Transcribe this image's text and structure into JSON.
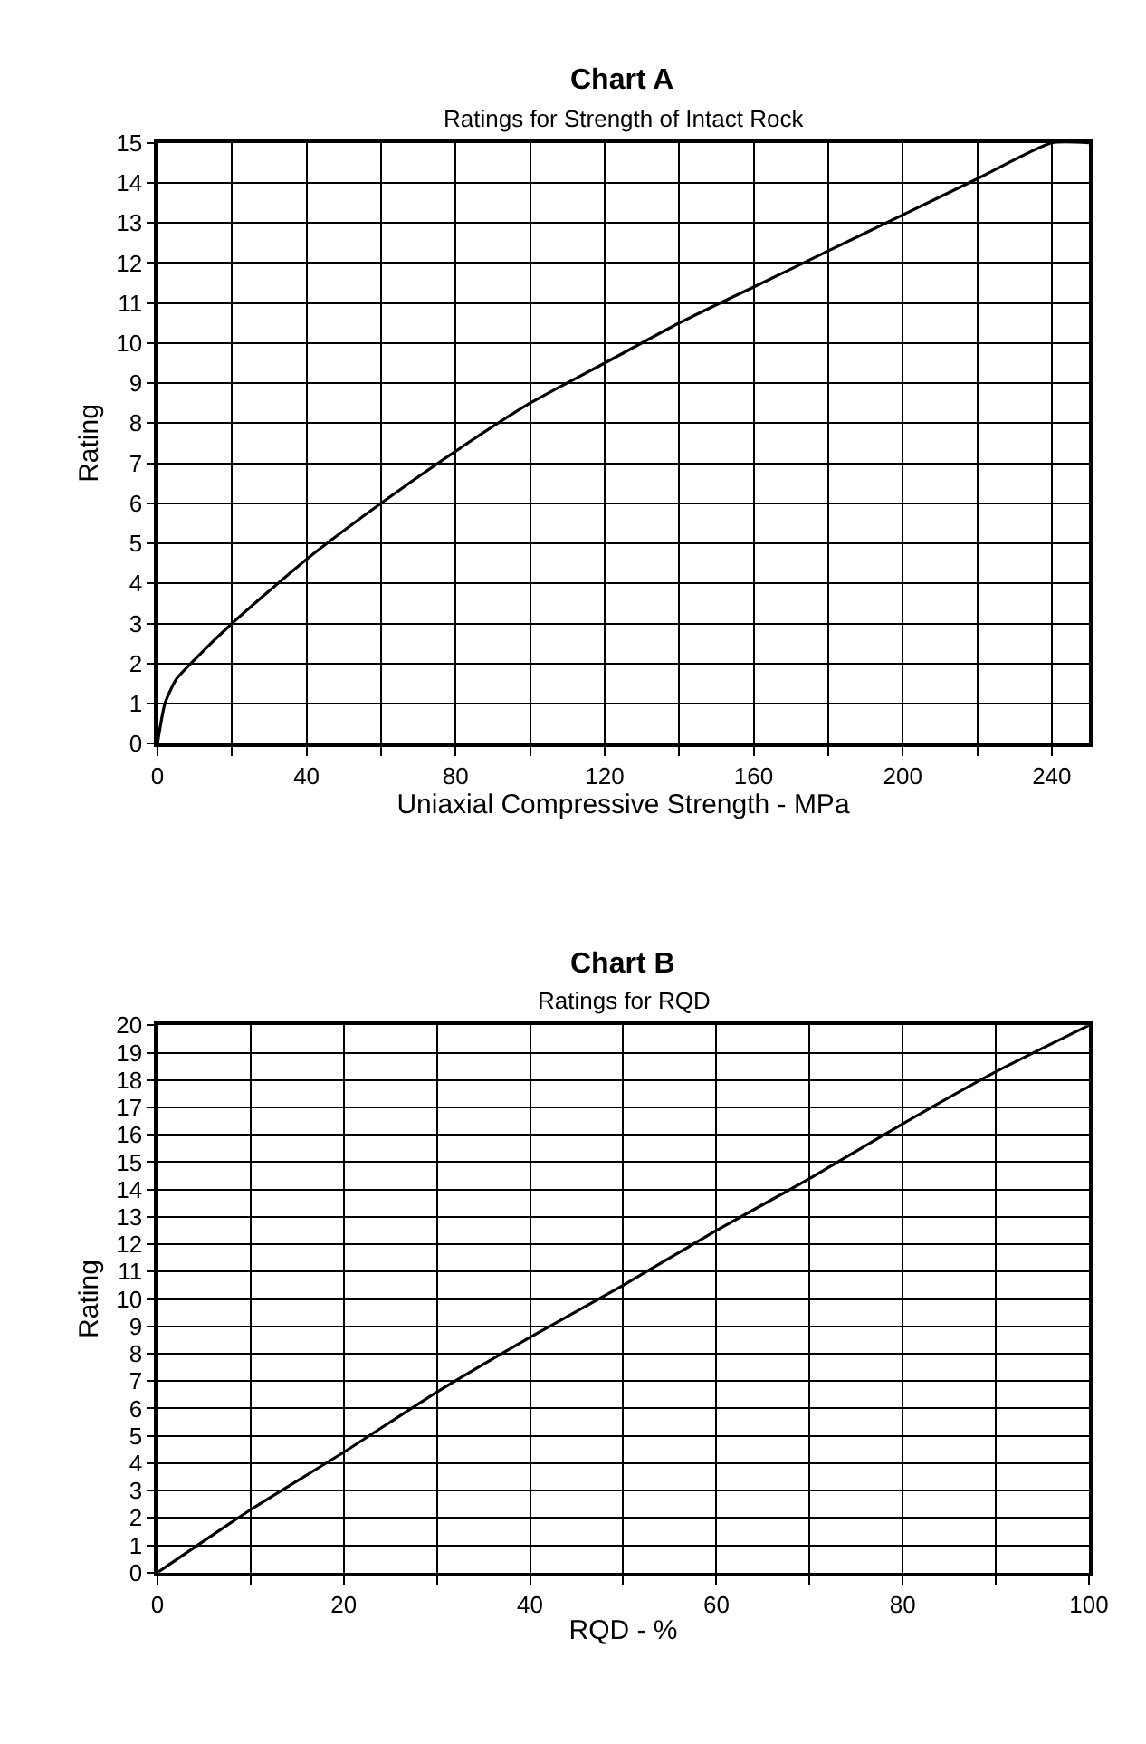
{
  "chart_data": [
    {
      "type": "line",
      "title": "Chart A",
      "subtitle": "Ratings for Strength of Intact Rock",
      "xlabel": "Uniaxial Compressive Strength - MPa",
      "ylabel": "Rating",
      "x": [
        0,
        2,
        5,
        10,
        20,
        40,
        60,
        80,
        100,
        120,
        140,
        160,
        180,
        200,
        220,
        240,
        250
      ],
      "series": [
        {
          "color": "#000000",
          "values": [
            0,
            1,
            1.6,
            2.1,
            3.0,
            4.6,
            6.0,
            7.3,
            8.5,
            9.5,
            10.5,
            11.4,
            12.3,
            13.2,
            14.1,
            15.0,
            15.0
          ]
        }
      ],
      "xlim": [
        0,
        250
      ],
      "xticks": [
        0,
        {
          "value": 20,
          "label": null
        },
        40,
        {
          "value": 60,
          "label": null
        },
        80,
        {
          "value": 100,
          "label": null
        },
        120,
        {
          "value": 140,
          "label": null
        },
        160,
        {
          "value": 180,
          "label": null
        },
        200,
        {
          "value": 220,
          "label": null
        },
        240
      ],
      "ylim": [
        0,
        15
      ],
      "yticks": [
        0,
        1,
        2,
        3,
        4,
        5,
        6,
        7,
        8,
        9,
        10,
        11,
        12,
        13,
        14,
        15
      ],
      "grid": true,
      "marker": "none",
      "line_style": "solid"
    },
    {
      "type": "line",
      "title": "Chart B",
      "subtitle": "Ratings for RQD",
      "xlabel": "RQD - %",
      "ylabel": "Rating",
      "x": [
        0,
        10,
        20,
        30,
        40,
        50,
        60,
        70,
        80,
        90,
        100
      ],
      "series": [
        {
          "color": "#000000",
          "values": [
            0,
            2.3,
            4.4,
            6.6,
            8.6,
            10.5,
            12.5,
            14.4,
            16.4,
            18.3,
            20
          ]
        }
      ],
      "xlim": [
        0,
        100
      ],
      "xticks": [
        0,
        {
          "value": 10,
          "label": null
        },
        20,
        {
          "value": 30,
          "label": null
        },
        40,
        {
          "value": 50,
          "label": null
        },
        60,
        {
          "value": 70,
          "label": null
        },
        80,
        {
          "value": 90,
          "label": null
        },
        100
      ],
      "ylim": [
        0,
        20
      ],
      "yticks": [
        0,
        1,
        2,
        3,
        4,
        5,
        6,
        7,
        8,
        9,
        10,
        11,
        12,
        13,
        14,
        15,
        16,
        17,
        18,
        19,
        20
      ],
      "grid": true,
      "marker": "none",
      "line_style": "solid"
    }
  ]
}
